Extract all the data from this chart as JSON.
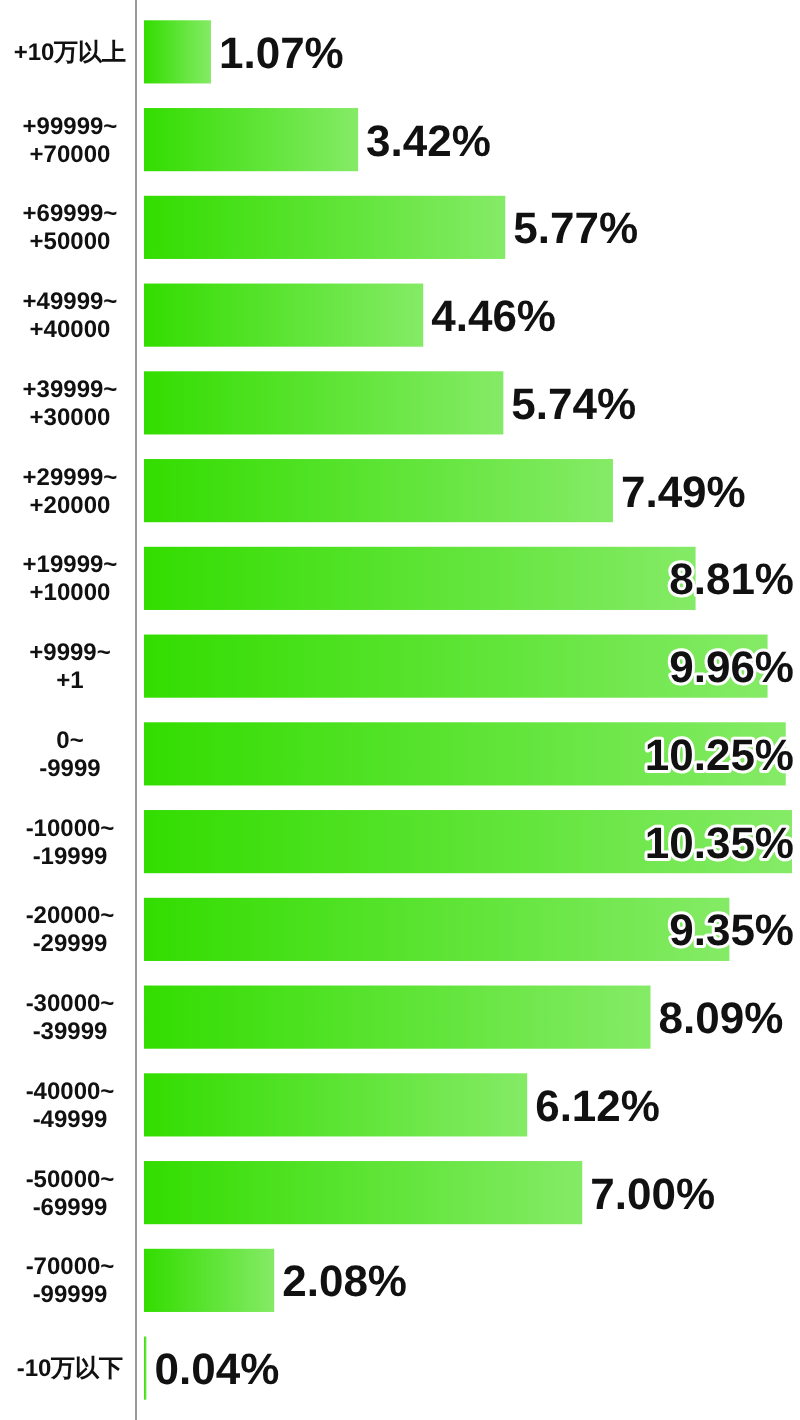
{
  "chart_data": {
    "type": "bar",
    "orientation": "horizontal",
    "color": "#33dd00",
    "categories": [
      "+10万以上",
      "+99999~\n+70000",
      "+69999~\n+50000",
      "+49999~\n+40000",
      "+39999~\n+30000",
      "+29999~\n+20000",
      "+19999~\n+10000",
      "+9999~\n+1",
      "0~\n-9999",
      "-10000~\n-19999",
      "-20000~\n-29999",
      "-30000~\n-39999",
      "-40000~\n-49999",
      "-50000~\n-69999",
      "-70000~\n-99999",
      "-10万以下"
    ],
    "values": [
      1.07,
      3.42,
      5.77,
      4.46,
      5.74,
      7.49,
      8.81,
      9.96,
      10.25,
      10.35,
      9.35,
      8.09,
      6.12,
      7.0,
      2.08,
      0.04
    ],
    "value_labels": [
      "1.07%",
      "3.42%",
      "5.77%",
      "4.46%",
      "5.74%",
      "7.49%",
      "8.81%",
      "9.96%",
      "10.25%",
      "10.35%",
      "9.35%",
      "8.09%",
      "6.12%",
      "7.00%",
      "2.08%",
      "0.04%"
    ]
  }
}
